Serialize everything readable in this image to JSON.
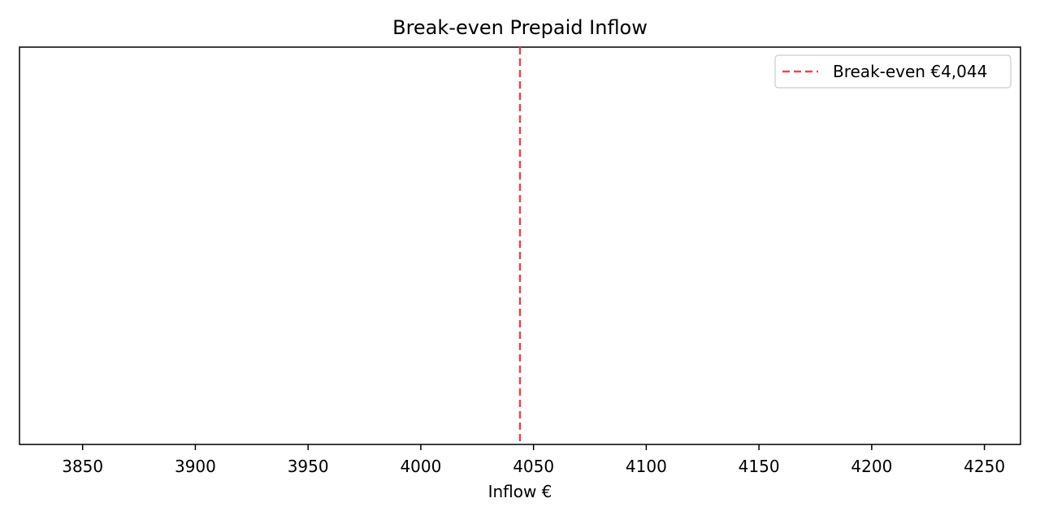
{
  "chart_data": {
    "type": "line",
    "title": "Break-even Prepaid Inflow",
    "xlabel": "Inflow €",
    "ylabel": "",
    "xlim": [
      3822,
      4266
    ],
    "x_ticks": [
      3850,
      3900,
      3950,
      4000,
      4050,
      4100,
      4150,
      4200,
      4250
    ],
    "x_tick_labels": [
      "3850",
      "3900",
      "3950",
      "4000",
      "4050",
      "4100",
      "4150",
      "4200",
      "4250"
    ],
    "y_ticks_visible": false,
    "grid": false,
    "legend_position": "upper-right",
    "series": [
      {
        "name": "Break-even €4,044",
        "kind": "vertical-line",
        "x": 4044,
        "style": "dashed",
        "color": "#e8484a"
      }
    ]
  }
}
